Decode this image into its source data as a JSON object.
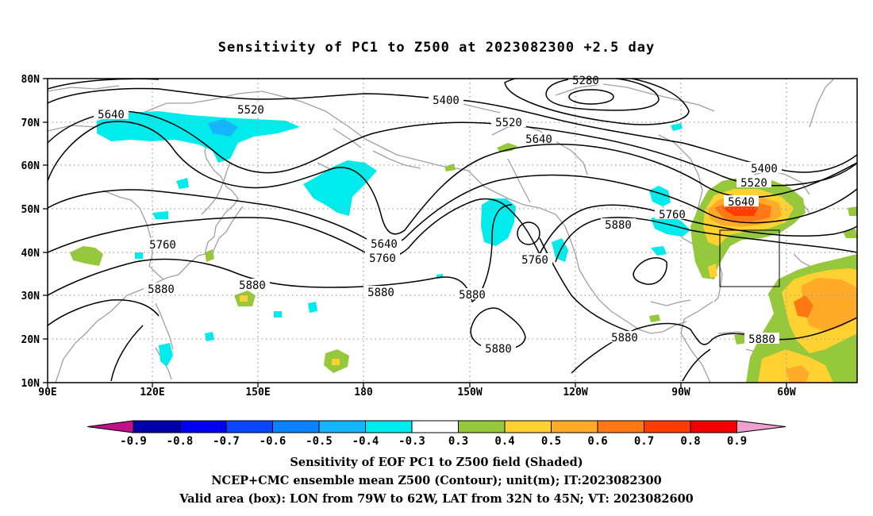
{
  "title": "Sensitivity of PC1 to Z500 at 2023082300 +2.5 day",
  "lon_ticks": [
    "90E",
    "120E",
    "150E",
    "180",
    "150W",
    "120W",
    "90W",
    "60W"
  ],
  "lat_ticks": [
    "80N",
    "70N",
    "60N",
    "50N",
    "40N",
    "30N",
    "20N",
    "10N"
  ],
  "contour_labels": [
    "5280",
    "5400",
    "5520",
    "5640",
    "5520",
    "5640",
    "5400",
    "5520",
    "5640",
    "5760",
    "5880",
    "5760",
    "5640",
    "5760",
    "5880",
    "5880",
    "5880",
    "5760",
    "5880",
    "5880",
    "5880",
    "5880"
  ],
  "colorbar": {
    "labels": [
      "-0.9",
      "-0.8",
      "-0.7",
      "-0.6",
      "-0.5",
      "-0.4",
      "-0.3",
      "0.3",
      "0.4",
      "0.5",
      "0.6",
      "0.7",
      "0.8",
      "0.9"
    ],
    "left_arrow_color": "#c0108c",
    "right_arrow_color": "#f0a0d0",
    "colors": [
      "#0000a8",
      "#0000f0",
      "#0a46ff",
      "#0a82ff",
      "#14b4ff",
      "#00ebeb",
      "#ffffff",
      "#96c83c",
      "#ffd232",
      "#ffaa28",
      "#ff7814",
      "#ff3c00",
      "#f00000"
    ]
  },
  "captions": [
    "Sensitivity of EOF PC1 to Z500 field (Shaded)",
    "NCEP+CMC ensemble mean Z500 (Contour); unit(m); IT:2023082300",
    "Valid area (box): LON from 79W to 62W, LAT from 32N to 45N; VT: 2023082600"
  ],
  "colors": {
    "negative_shade": "#00ebeb",
    "positive_low": "#96c83c",
    "positive_mid": "#ffd232",
    "positive_high": "#ff7814",
    "positive_max": "#ff3c00",
    "coastline": "#a0a0a0"
  }
}
